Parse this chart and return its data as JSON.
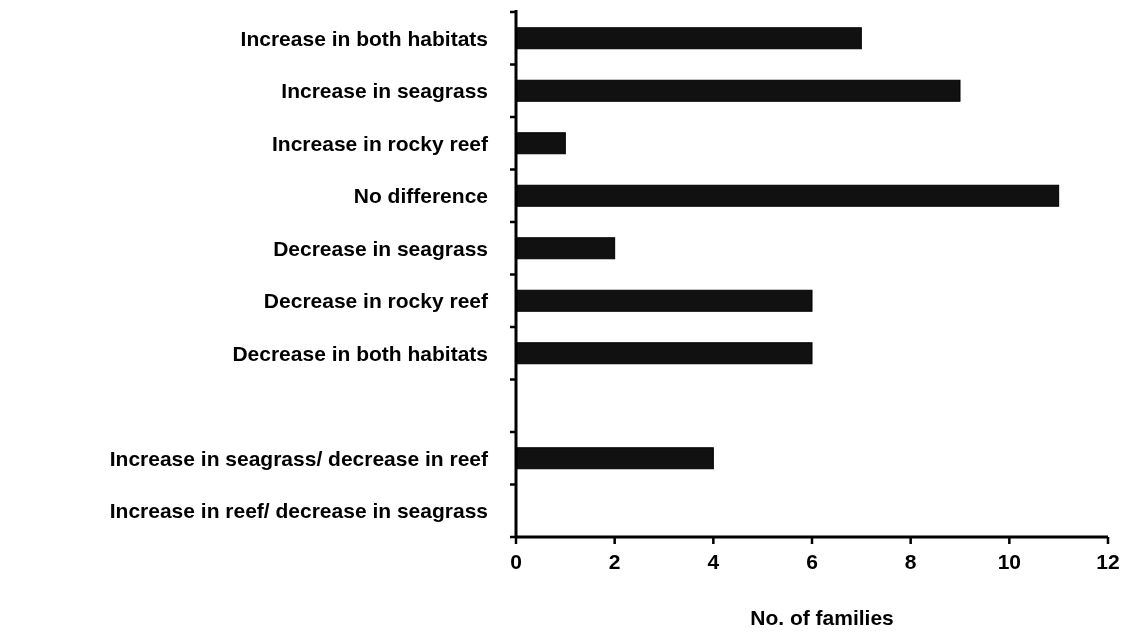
{
  "chart_data": {
    "type": "bar",
    "orientation": "horizontal",
    "xlabel": "No. of families",
    "categories": [
      "Increase in both habitats",
      "Increase in seagrass",
      "Increase in rocky reef",
      "No difference",
      "Decrease in seagrass",
      "Decrease in rocky reef",
      "Decrease in both habitats",
      null,
      "Increase in seagrass/ decrease in reef",
      "Increase in reef/ decrease in seagrass"
    ],
    "values": [
      7,
      9,
      1,
      11,
      2,
      6,
      6,
      null,
      4,
      0
    ],
    "color": "#111111",
    "xlim": [
      0,
      12
    ],
    "xticks": [
      0,
      2,
      4,
      6,
      8,
      10,
      12
    ],
    "grid": false
  }
}
